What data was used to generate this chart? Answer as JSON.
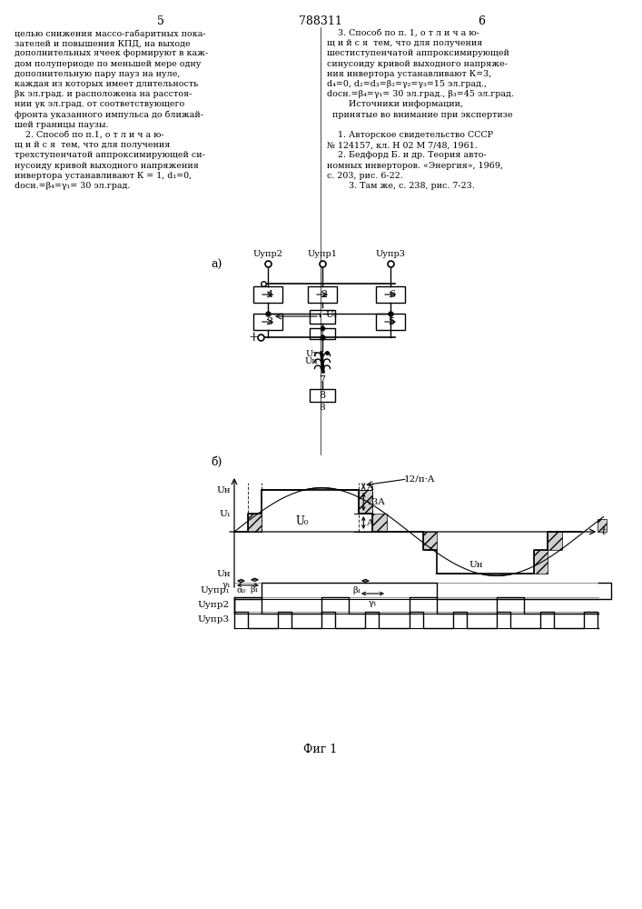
{
  "page_num_left": "5",
  "page_num_center": "788311",
  "page_num_right": "6",
  "left_lines": [
    "целью снижения массо-габаритных пока-",
    "зателей и повышения КПД, на выходе",
    "дополнительных ячеек формируют в каж-",
    "дом полупериоде по меньшей мере одну",
    "дополнительную пару пауз на нуле,",
    "каждая из которых имеет длительность",
    "βк эл.град. и расположена на расстоя-",
    "нии γк эл.град. от соответствующего",
    "фронта указанного импульса до ближай-",
    "шей границы паузы.",
    "    2. Способ по п.1, о т л и ч а ю-",
    "щ и й с я  тем, что для получения",
    "трехступенчатой аппроксимирующей си-",
    "нусоиду кривой выходного напряжения",
    "инвертора устанавливают К = 1, d₁=0,",
    "dосн.=β₄=γ₁= 30 эл.град."
  ],
  "right_lines": [
    "    3. Способ по п. 1, о т л и ч а ю-",
    "щ и й с я  тем, что для получения",
    "шестиступенчатой аппроксимирующей",
    "синусоиду кривой выходного напряже-",
    "ния инвертора устанавливают К=3,",
    "d₄=0, d₂=d₃=β₂=γ₂=γ₃=15 эл.град.,",
    "dосн.=β₄=γ₁= 30 эл.град., β₃=45 эл.град.",
    "        Источники информации,",
    "  принятые во внимание при экспертизе",
    "",
    "    1. Авторское свидетельство СССР",
    "№ 124157, кл. Н 02 М 7/48, 1961.",
    "    2. Бедфорд Б. и др. Теория авто-",
    "номных инверторов. «Энергия», 1969,",
    "с. 203, рис. 6-22.",
    "        3. Там же, с. 238, рис. 7-23."
  ],
  "fig_caption": "Фиг 1",
  "bg_color": "#ffffff",
  "line_color": "#000000"
}
